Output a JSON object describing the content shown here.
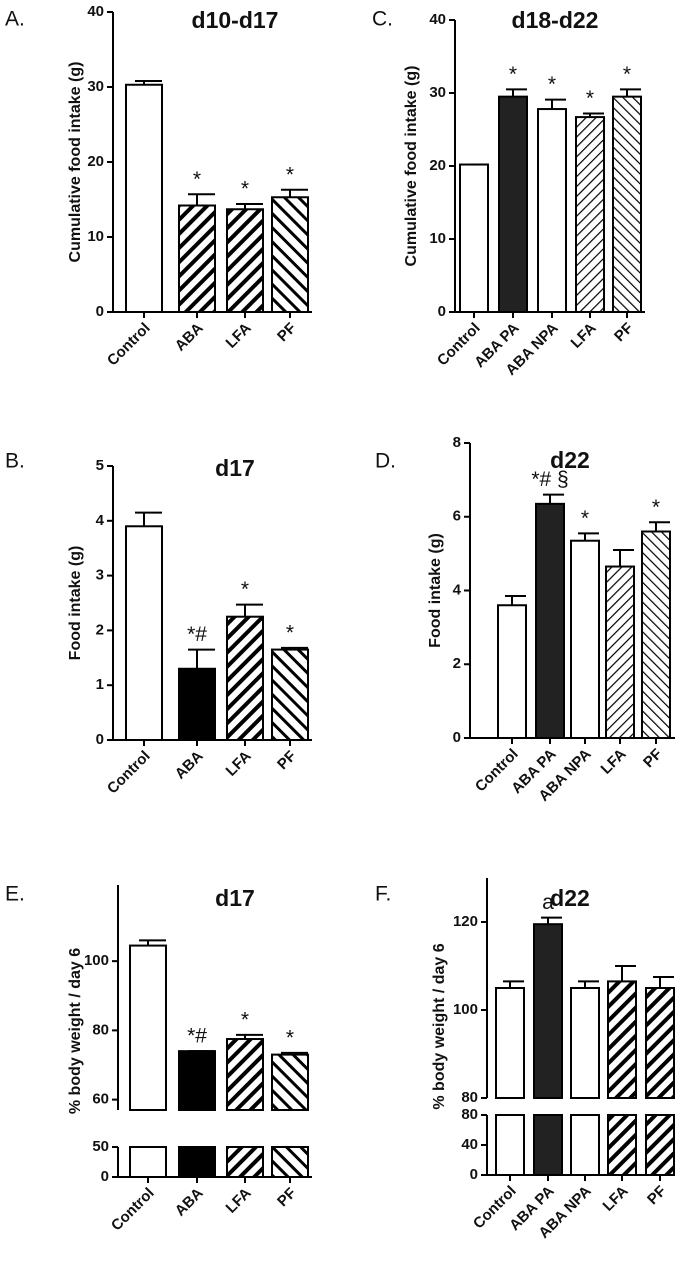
{
  "chart_data": [
    {
      "type": "bar",
      "panel": "A.",
      "title": "d10-d17",
      "y_label": "Cumulative food intake (g)",
      "categories": [
        "Control",
        "ABA",
        "LFA",
        "PF"
      ],
      "values": [
        30.3,
        14.2,
        13.7,
        15.3
      ],
      "errors": [
        0.5,
        1.5,
        0.7,
        1.0
      ],
      "fills": [
        "#ffffff",
        "#ffffff",
        "#ffffff",
        "#ffffff"
      ],
      "patterns": [
        "none",
        "back",
        "back",
        "fwd"
      ],
      "annotations": [
        null,
        "*",
        "*",
        "*"
      ],
      "ylim": [
        0,
        40
      ],
      "yticks": [
        0,
        10,
        20,
        30,
        40
      ]
    },
    {
      "type": "bar",
      "panel": "C.",
      "title": "d18-d22",
      "y_label": "Cumulative food intake (g)",
      "categories": [
        "Control",
        "ABA PA",
        "ABA NPA",
        "LFA",
        "PF"
      ],
      "values": [
        20.2,
        29.5,
        27.8,
        26.7,
        29.5
      ],
      "errors": [
        0,
        1.0,
        1.3,
        0.5,
        1.0
      ],
      "fills": [
        "#ffffff",
        "#222222",
        "#ffffff",
        "#ffffff",
        "#ffffff"
      ],
      "patterns": [
        "none",
        "none",
        "none",
        "back-light",
        "fwd-light"
      ],
      "annotations": [
        null,
        "*",
        "*",
        "*",
        "*"
      ],
      "ylim": [
        0,
        40
      ],
      "yticks": [
        0,
        10,
        20,
        30,
        40
      ]
    },
    {
      "type": "bar",
      "panel": "B.",
      "title": "d17",
      "y_label": "Food intake (g)",
      "categories": [
        "Control",
        "ABA",
        "LFA",
        "PF"
      ],
      "values": [
        3.9,
        1.3,
        2.25,
        1.65
      ],
      "errors": [
        0.25,
        0.35,
        0.22,
        0.03
      ],
      "fills": [
        "#ffffff",
        "#000000",
        "#ffffff",
        "#ffffff"
      ],
      "patterns": [
        "none",
        "none",
        "back",
        "fwd"
      ],
      "annotations": [
        null,
        "*#",
        "*",
        "*"
      ],
      "ylim": [
        0,
        5
      ],
      "yticks": [
        0,
        1,
        2,
        3,
        4,
        5
      ]
    },
    {
      "type": "bar",
      "panel": "D.",
      "title": "d22",
      "y_label": "Food intake (g)",
      "categories": [
        "Control",
        "ABA PA",
        "ABA NPA",
        "LFA",
        "PF"
      ],
      "values": [
        3.6,
        6.35,
        5.35,
        4.65,
        5.6
      ],
      "errors": [
        0.25,
        0.25,
        0.2,
        0.45,
        0.25
      ],
      "fills": [
        "#ffffff",
        "#222222",
        "#ffffff",
        "#ffffff",
        "#ffffff"
      ],
      "patterns": [
        "none",
        "none",
        "none",
        "back-light",
        "fwd-light"
      ],
      "annotations": [
        null,
        "*# §",
        "*",
        null,
        "*"
      ],
      "ylim": [
        0,
        8
      ],
      "yticks": [
        0,
        2,
        4,
        6,
        8
      ]
    },
    {
      "type": "broken-bar",
      "panel": "E.",
      "title": "d17",
      "y_label": "% body weight / day 6",
      "categories": [
        "Control",
        "ABA",
        "LFA",
        "PF"
      ],
      "values": [
        104.5,
        74,
        77.5,
        73
      ],
      "errors": [
        1.5,
        0,
        1.2,
        0.5
      ],
      "fills": [
        "#ffffff",
        "#000000",
        "#ffffff",
        "#ffffff"
      ],
      "patterns": [
        "none",
        "none",
        "back",
        "fwd"
      ],
      "annotations": [
        null,
        "*#",
        "*",
        "*"
      ],
      "ylim": [
        57,
        122
      ],
      "yticks": [
        60,
        80,
        100
      ],
      "ylim_lower": [
        0,
        50
      ],
      "yticks_lower": [
        0,
        50
      ]
    },
    {
      "type": "broken-bar",
      "panel": "F.",
      "title": "d22",
      "y_label": "% body weight / day 6",
      "categories": [
        "Control",
        "ABA PA",
        "ABA NPA",
        "LFA",
        "PF"
      ],
      "values": [
        105,
        119.5,
        105,
        106.5,
        105
      ],
      "errors": [
        1.5,
        1.5,
        1.5,
        3.5,
        2.5
      ],
      "fills": [
        "#ffffff",
        "#222222",
        "#ffffff",
        "#ffffff",
        "#ffffff"
      ],
      "patterns": [
        "none",
        "none",
        "none",
        "back",
        "back"
      ],
      "annotations": [
        null,
        "a",
        null,
        null,
        null
      ],
      "ylim": [
        80,
        130
      ],
      "yticks": [
        80,
        100,
        120
      ],
      "ylim_lower": [
        0,
        80
      ],
      "yticks_lower": [
        0,
        40,
        80
      ]
    }
  ]
}
